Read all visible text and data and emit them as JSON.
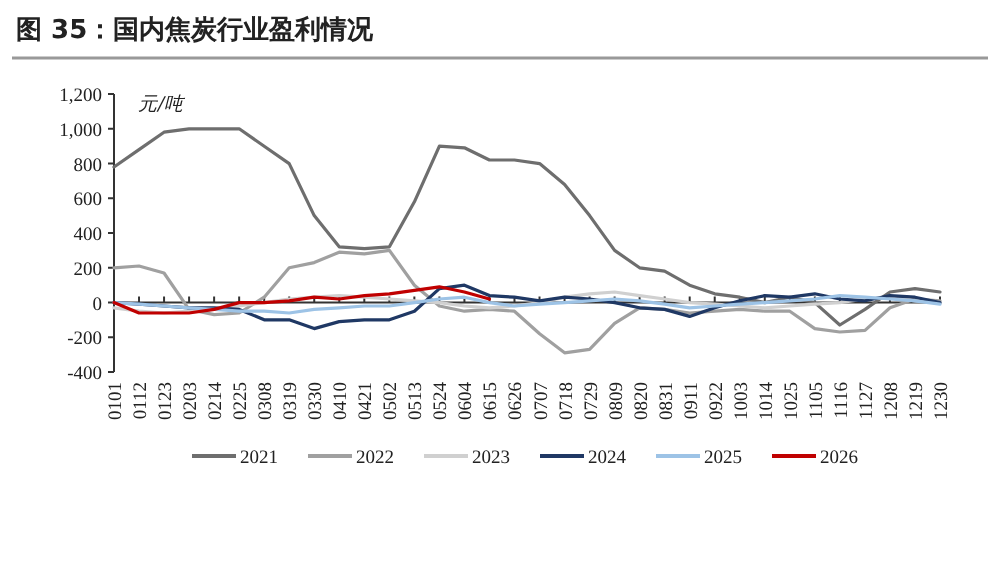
{
  "chart_data": {
    "type": "line",
    "title": "图 35：国内焦炭行业盈利情况",
    "ylabel": "元/吨",
    "categories": [
      "0101",
      "0112",
      "0123",
      "0203",
      "0214",
      "0225",
      "0308",
      "0319",
      "0330",
      "0410",
      "0421",
      "0502",
      "0513",
      "0524",
      "0604",
      "0615",
      "0626",
      "0707",
      "0718",
      "0729",
      "0809",
      "0820",
      "0831",
      "0911",
      "0922",
      "1003",
      "1014",
      "1025",
      "1105",
      "1116",
      "1127",
      "1208",
      "1219",
      "1230"
    ],
    "series": [
      {
        "name": "2021",
        "color": "#6e6e6e",
        "values": [
          780,
          880,
          980,
          1000,
          1000,
          1000,
          900,
          800,
          500,
          320,
          310,
          320,
          580,
          900,
          890,
          820,
          820,
          800,
          680,
          500,
          300,
          200,
          180,
          100,
          50,
          30,
          0,
          30,
          0,
          -130,
          -40,
          60,
          80,
          60
        ]
      },
      {
        "name": "2022",
        "color": "#a0a0a0",
        "values": [
          200,
          210,
          170,
          -40,
          -70,
          -60,
          30,
          200,
          230,
          290,
          280,
          300,
          100,
          -20,
          -50,
          -40,
          -50,
          -180,
          -290,
          -270,
          -120,
          -30,
          -40,
          -60,
          -50,
          -40,
          -50,
          -50,
          -150,
          -170,
          -160,
          -30,
          20,
          10
        ]
      },
      {
        "name": "2023",
        "color": "#d0d0d0",
        "values": [
          -30,
          -50,
          -60,
          -50,
          -40,
          -20,
          0,
          20,
          30,
          40,
          30,
          20,
          10,
          0,
          -20,
          -30,
          -20,
          0,
          30,
          50,
          60,
          40,
          20,
          0,
          -10,
          -20,
          -30,
          -20,
          -10,
          0,
          20,
          30,
          10,
          0
        ]
      },
      {
        "name": "2024",
        "color": "#1f3864",
        "values": [
          0,
          -10,
          -20,
          -30,
          -30,
          -40,
          -100,
          -100,
          -150,
          -110,
          -100,
          -100,
          -50,
          80,
          100,
          40,
          30,
          10,
          30,
          20,
          0,
          -30,
          -40,
          -80,
          -30,
          10,
          40,
          30,
          50,
          20,
          10,
          40,
          30,
          0
        ]
      },
      {
        "name": "2025",
        "color": "#9dc3e6",
        "values": [
          0,
          -10,
          -20,
          -30,
          -40,
          -50,
          -50,
          -60,
          -40,
          -30,
          -20,
          -20,
          0,
          20,
          30,
          0,
          -20,
          -10,
          0,
          10,
          20,
          10,
          -10,
          -30,
          -20,
          -10,
          0,
          10,
          20,
          40,
          30,
          20,
          10,
          -10
        ]
      },
      {
        "name": "2026",
        "color": "#c00000",
        "values": [
          0,
          -60,
          -60,
          -60,
          -40,
          0,
          0,
          10,
          30,
          20,
          40,
          50,
          70,
          90,
          60,
          20,
          null,
          null,
          null,
          null,
          null,
          null,
          null,
          null,
          null,
          null,
          null,
          null,
          null,
          null,
          null,
          null,
          null,
          null
        ]
      }
    ],
    "ylim": [
      -400,
      1200
    ],
    "yticks": [
      {
        "value": -400,
        "label": "-400"
      },
      {
        "value": -200,
        "label": "-200"
      },
      0,
      200,
      400,
      600,
      800,
      {
        "value": 1000,
        "label": "1,000"
      },
      {
        "value": 1200,
        "label": "1,200"
      }
    ],
    "legend": "bottom"
  }
}
